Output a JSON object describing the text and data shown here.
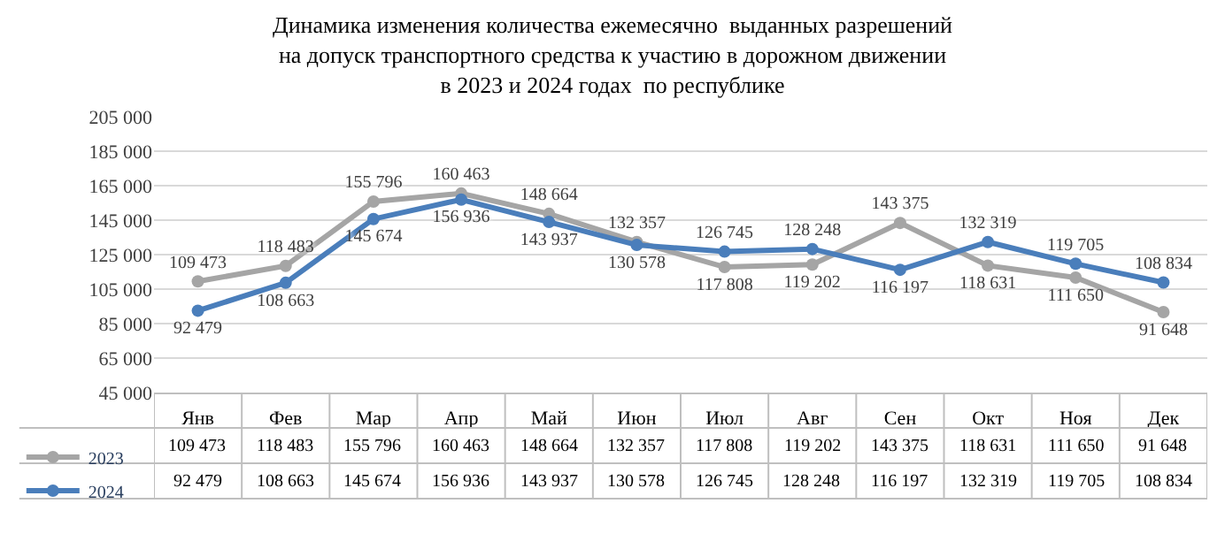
{
  "chart_data": {
    "type": "line",
    "title": "Динамика изменения количества ежемесячно  выданных разрешений\nна допуск транспортного средства к участию в дорожном движении\nв 2023 и 2024 годах  по республике",
    "categories": [
      "Янв",
      "Фев",
      "Мар",
      "Апр",
      "Май",
      "Июн",
      "Июл",
      "Авг",
      "Сен",
      "Окт",
      "Ноя",
      "Дек"
    ],
    "series": [
      {
        "name": "2023",
        "color": "#a5a5a5",
        "values": [
          109473,
          118483,
          155796,
          160463,
          148664,
          132357,
          117808,
          119202,
          143375,
          118631,
          111650,
          91648
        ],
        "value_labels": [
          "109 473",
          "118 483",
          "155 796",
          "160 463",
          "148 664",
          "132 357",
          "117 808",
          "119 202",
          "143 375",
          "118 631",
          "111 650",
          "91 648"
        ]
      },
      {
        "name": "2024",
        "color": "#4a7ebb",
        "values": [
          92479,
          108663,
          145674,
          156936,
          143937,
          130578,
          126745,
          128248,
          116197,
          132319,
          119705,
          108834
        ],
        "value_labels": [
          "92 479",
          "108 663",
          "145 674",
          "156 936",
          "143 937",
          "130 578",
          "126 745",
          "128 248",
          "116 197",
          "132 319",
          "119 705",
          "108 834"
        ]
      }
    ],
    "ylim": [
      45000,
      205000
    ],
    "yticks": [
      {
        "value": 45000,
        "label": "45 000"
      },
      {
        "value": 65000,
        "label": "65 000"
      },
      {
        "value": 85000,
        "label": "85 000"
      },
      {
        "value": 105000,
        "label": "105 000"
      },
      {
        "value": 125000,
        "label": "125 000"
      },
      {
        "value": 145000,
        "label": "145 000"
      },
      {
        "value": 165000,
        "label": "165 000"
      },
      {
        "value": 185000,
        "label": "185 000"
      },
      {
        "value": 205000,
        "label": "205 000"
      }
    ],
    "grid": "y",
    "legend": "bottom left",
    "marker": "circle",
    "line_style": "solid"
  }
}
